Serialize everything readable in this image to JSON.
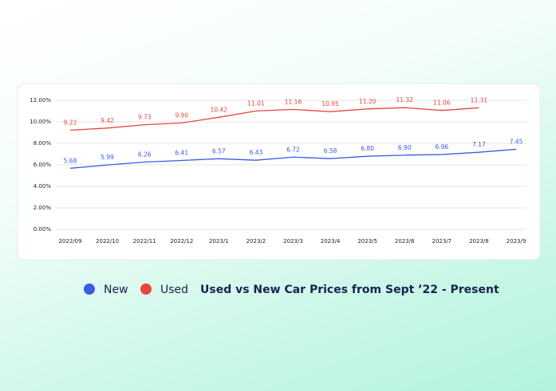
{
  "chart_data": {
    "type": "line",
    "title": "Used vs New Car Prices from Sept ’22 - Present",
    "categories": [
      "2022/09",
      "2022/10",
      "2022/11",
      "2022/12",
      "2023/1",
      "2023/2",
      "2023/3",
      "2023/4",
      "2023/5",
      "2023/6",
      "2023/7",
      "2023/8",
      "2023/9"
    ],
    "series": [
      {
        "name": "New",
        "color": "#3b5ce0",
        "values": [
          5.68,
          5.99,
          6.26,
          6.41,
          6.57,
          6.43,
          6.72,
          6.58,
          6.8,
          6.9,
          6.96,
          7.17,
          7.45
        ],
        "value_labels": [
          "5.68",
          "5.99",
          "6.26",
          "6.41",
          "6.57",
          "6.43",
          "6.72",
          "6.58",
          "6.80",
          "6.90",
          "6.96",
          "7.17",
          "7.45"
        ]
      },
      {
        "name": "Used",
        "color": "#e8453c",
        "values": [
          9.22,
          9.42,
          9.73,
          9.9,
          10.42,
          11.01,
          11.16,
          10.95,
          11.2,
          11.32,
          11.06,
          11.31,
          null
        ],
        "value_labels": [
          "9.22",
          "9.42",
          "9.73",
          "9.90",
          "10.42",
          "11.01",
          "11.16",
          "10.95",
          "11.20",
          "11.32",
          "11.06",
          "11.31",
          null
        ]
      }
    ],
    "ylim": [
      0,
      12
    ],
    "yticks": [
      {
        "value": 0,
        "label": "0.00%"
      },
      {
        "value": 2,
        "label": "2.00%"
      },
      {
        "value": 4,
        "label": "4.00%"
      },
      {
        "value": 6,
        "label": "6.00%"
      },
      {
        "value": 8,
        "label": "8.00%"
      },
      {
        "value": 10,
        "label": "10.00%"
      },
      {
        "value": 12,
        "label": "12.00%"
      }
    ],
    "grid": true
  }
}
